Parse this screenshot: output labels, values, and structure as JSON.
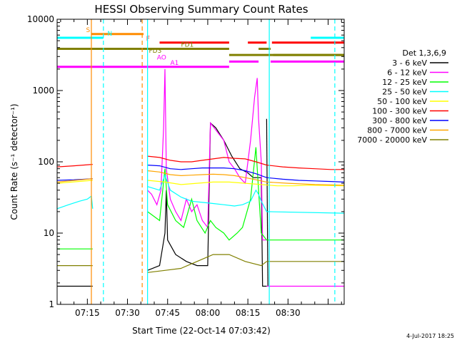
{
  "chart_data": {
    "type": "line",
    "title": "HESSI Observing Summary Count Rates",
    "xlabel": "Start Time (22-Oct-14 07:03:42)",
    "ylabel": "Count Rate (s⁻¹ detector⁻¹)",
    "yscale": "log",
    "ylim": [
      1,
      10000
    ],
    "xlim_minutes": [
      423.7,
      531
    ],
    "x_ticks": [
      {
        "label": "07:15",
        "min": 435
      },
      {
        "label": "07:30",
        "min": 450
      },
      {
        "label": "07:45",
        "min": 465
      },
      {
        "label": "08:00",
        "min": 480
      },
      {
        "label": "08:15",
        "min": 495
      },
      {
        "label": "08:30",
        "min": 510
      }
    ],
    "y_ticks": [
      {
        "label": "1",
        "v": 1
      },
      {
        "label": "10",
        "v": 10
      },
      {
        "label": "100",
        "v": 100
      },
      {
        "label": "1000",
        "v": 1000
      },
      {
        "label": "10000",
        "v": 10000
      }
    ],
    "legend_title": "Det 1,3,6,9",
    "legend_position": "right",
    "series": [
      {
        "name": "3 - 6 keV",
        "color": "#000000",
        "segments": [
          [
            [
              423.7,
              1.8
            ],
            [
              437,
              1.8
            ]
          ],
          [
            [
              457.5,
              3
            ],
            [
              462,
              3.5
            ],
            [
              464,
              10
            ],
            [
              464.5,
              40
            ],
            [
              465,
              8
            ],
            [
              468,
              5
            ],
            [
              472,
              4
            ],
            [
              476,
              3.5
            ],
            [
              480,
              3.5
            ],
            [
              481,
              350
            ],
            [
              483,
              300
            ],
            [
              486,
              200
            ],
            [
              489,
              120
            ],
            [
              492,
              80
            ],
            [
              495,
              70
            ],
            [
              497,
              60
            ],
            [
              500,
              60
            ],
            [
              500.5,
              1.8
            ],
            [
              502,
              1.8
            ]
          ],
          [
            [
              502,
              400
            ],
            [
              502.5,
              1.8
            ]
          ]
        ]
      },
      {
        "name": "6 - 12 keV",
        "color": "#ff00ff",
        "segments": [
          [
            [
              502,
              1.8
            ],
            [
              531,
              1.8
            ]
          ],
          [
            [
              457.5,
              40
            ],
            [
              459,
              35
            ],
            [
              461,
              25
            ],
            [
              462.5,
              40
            ],
            [
              463.5,
              300
            ],
            [
              464,
              2000
            ],
            [
              464.5,
              80
            ],
            [
              466,
              30
            ],
            [
              468,
              20
            ],
            [
              470,
              15
            ],
            [
              472,
              30
            ],
            [
              474,
              20
            ],
            [
              476,
              25
            ],
            [
              478,
              15
            ],
            [
              480,
              12
            ],
            [
              481,
              350
            ],
            [
              483,
              280
            ],
            [
              486,
              200
            ],
            [
              488,
              100
            ],
            [
              490,
              80
            ],
            [
              492,
              60
            ],
            [
              494,
              50
            ],
            [
              496,
              200
            ],
            [
              497.5,
              800
            ],
            [
              498.5,
              1500
            ],
            [
              499,
              400
            ],
            [
              500,
              100
            ],
            [
              500.5,
              8
            ],
            [
              502,
              8
            ]
          ]
        ]
      },
      {
        "name": "12 - 25 keV",
        "color": "#00ff00",
        "segments": [
          [
            [
              423.7,
              6
            ],
            [
              437,
              6
            ]
          ],
          [
            [
              457.5,
              20
            ],
            [
              462,
              15
            ],
            [
              464,
              80
            ],
            [
              465,
              25
            ],
            [
              468,
              15
            ],
            [
              471,
              12
            ],
            [
              474,
              30
            ],
            [
              476,
              15
            ],
            [
              479,
              10
            ],
            [
              481,
              15
            ],
            [
              483,
              12
            ],
            [
              486,
              10
            ],
            [
              488,
              8
            ],
            [
              491,
              10
            ],
            [
              493,
              12
            ],
            [
              496,
              30
            ],
            [
              498,
              160
            ],
            [
              499,
              40
            ],
            [
              500,
              10
            ],
            [
              502,
              8
            ],
            [
              531,
              8
            ]
          ]
        ]
      },
      {
        "name": "25 - 50 keV",
        "color": "#00ffff",
        "segments": [
          [
            [
              423.7,
              22
            ],
            [
              428,
              25
            ],
            [
              432,
              28
            ],
            [
              435,
              30
            ],
            [
              436.5,
              33
            ],
            [
              437,
              22
            ]
          ],
          [
            [
              457.5,
              45
            ],
            [
              462,
              40
            ],
            [
              464,
              65
            ],
            [
              466,
              40
            ],
            [
              470,
              32
            ],
            [
              474,
              28
            ],
            [
              478,
              27
            ],
            [
              482,
              26
            ],
            [
              486,
              25
            ],
            [
              490,
              24
            ],
            [
              493,
              25
            ],
            [
              496,
              28
            ],
            [
              498,
              40
            ],
            [
              499,
              35
            ],
            [
              500,
              28
            ],
            [
              502,
              20
            ],
            [
              531,
              19
            ]
          ]
        ]
      },
      {
        "name": "50 - 100 keV",
        "color": "#ffff00",
        "segments": [
          [
            [
              423.7,
              50
            ],
            [
              437,
              55
            ]
          ],
          [
            [
              457.5,
              55
            ],
            [
              464,
              52
            ],
            [
              470,
              48
            ],
            [
              476,
              50
            ],
            [
              482,
              52
            ],
            [
              488,
              52
            ],
            [
              494,
              50
            ],
            [
              500,
              48
            ],
            [
              506,
              46
            ],
            [
              512,
              46
            ],
            [
              518,
              47
            ],
            [
              531,
              46
            ]
          ]
        ]
      },
      {
        "name": "100 - 300 keV",
        "color": "#ff0000",
        "segments": [
          [
            [
              423.7,
              85
            ],
            [
              430,
              88
            ],
            [
              437,
              92
            ]
          ],
          [
            [
              457.5,
              120
            ],
            [
              462,
              115
            ],
            [
              466,
              105
            ],
            [
              470,
              100
            ],
            [
              474,
              100
            ],
            [
              478,
              105
            ],
            [
              482,
              110
            ],
            [
              486,
              115
            ],
            [
              490,
              112
            ],
            [
              494,
              110
            ],
            [
              498,
              100
            ],
            [
              502,
              90
            ],
            [
              508,
              85
            ],
            [
              514,
              82
            ],
            [
              520,
              80
            ],
            [
              526,
              78
            ],
            [
              531,
              78
            ]
          ]
        ]
      },
      {
        "name": "300 - 800 keV",
        "color": "#0000ff",
        "segments": [
          [
            [
              423.7,
              55
            ],
            [
              430,
              56
            ],
            [
              437,
              58
            ]
          ],
          [
            [
              457.5,
              90
            ],
            [
              462,
              88
            ],
            [
              466,
              80
            ],
            [
              470,
              78
            ],
            [
              474,
              80
            ],
            [
              478,
              82
            ],
            [
              482,
              82
            ],
            [
              486,
              82
            ],
            [
              490,
              80
            ],
            [
              494,
              75
            ],
            [
              498,
              68
            ],
            [
              502,
              60
            ],
            [
              508,
              57
            ],
            [
              514,
              55
            ],
            [
              520,
              54
            ],
            [
              526,
              53
            ],
            [
              531,
              52
            ]
          ]
        ]
      },
      {
        "name": "800 - 7000 keV",
        "color": "#ffa500",
        "segments": [
          [
            [
              423.7,
              52
            ],
            [
              437,
              58
            ]
          ],
          [
            [
              457.5,
              75
            ],
            [
              462,
              72
            ],
            [
              466,
              66
            ],
            [
              470,
              64
            ],
            [
              474,
              65
            ],
            [
              478,
              66
            ],
            [
              482,
              67
            ],
            [
              486,
              66
            ],
            [
              490,
              64
            ],
            [
              494,
              60
            ],
            [
              498,
              56
            ],
            [
              502,
              52
            ],
            [
              510,
              50
            ],
            [
              520,
              48
            ],
            [
              531,
              47
            ]
          ]
        ]
      },
      {
        "name": "7000 - 20000 keV",
        "color": "#808000",
        "segments": [
          [
            [
              423.7,
              3.5
            ],
            [
              437,
              3.5
            ]
          ],
          [
            [
              457.5,
              2.8
            ],
            [
              464,
              3
            ],
            [
              470,
              3.2
            ],
            [
              476,
              4
            ],
            [
              482,
              5
            ],
            [
              488,
              5
            ],
            [
              494,
              4
            ],
            [
              500,
              3.5
            ],
            [
              502,
              4
            ],
            [
              531,
              4
            ]
          ]
        ]
      }
    ],
    "flags": [
      {
        "label": "S",
        "color": "#ff8c00",
        "y": 6200,
        "segments": [
          [
            436.5,
            456
          ]
        ],
        "label_at": 434.5
      },
      {
        "label": "N",
        "color": "#00ffff",
        "y": 5500,
        "segments": [
          [
            423.7,
            441
          ],
          [
            518.5,
            531
          ]
        ],
        "label_at": 442.5
      },
      {
        "label": "F",
        "color": "#ff0000",
        "y": 4700,
        "segments": [
          [
            462,
            488
          ],
          [
            495,
            502
          ],
          [
            504,
            531
          ]
        ],
        "label_at": 457
      },
      {
        "label": "FD1",
        "color": "#808000",
        "y": 3850,
        "segments": [
          [
            423.7,
            488
          ],
          [
            499,
            503.5
          ]
        ],
        "label_at": 470
      },
      {
        "label": "FD3",
        "color": "#808000",
        "y": 3150,
        "segments": [
          [
            488,
            531
          ],
          [
            504.5,
            531
          ]
        ],
        "label_at": 458
      },
      {
        "label": "AO",
        "color": "#ff00ff",
        "y": 2550,
        "segments": [
          [
            488,
            499
          ],
          [
            503.5,
            531
          ]
        ],
        "label_at": 461
      },
      {
        "label": "A1",
        "color": "#ff00ff",
        "y": 2150,
        "segments": [
          [
            423.7,
            488
          ]
        ],
        "label_at": 466
      }
    ],
    "vlines": [
      {
        "min": 436.5,
        "color": "#ff8c00",
        "style": "solid"
      },
      {
        "min": 441,
        "color": "#00ffff",
        "style": "dashed"
      },
      {
        "min": 455.5,
        "color": "#ff8c00",
        "style": "dashed"
      },
      {
        "min": 457.5,
        "color": "#00ffff",
        "style": "solid"
      },
      {
        "min": 503,
        "color": "#00ffff",
        "style": "solid"
      },
      {
        "min": 527.5,
        "color": "#00ffff",
        "style": "dashed"
      }
    ],
    "timestamp": "4-Jul-2017 18:25"
  }
}
